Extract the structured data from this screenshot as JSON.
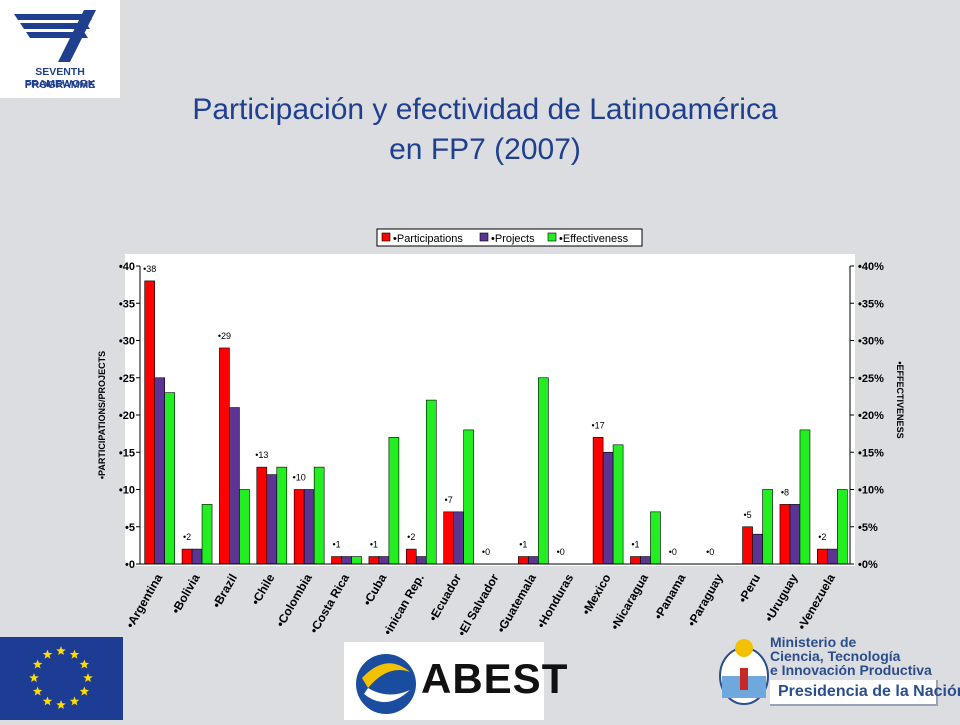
{
  "header": {
    "logo_caption_1": "SEVENTH FRAMEWORK",
    "logo_caption_2": "PROGRAMME",
    "title_line1": "Participación y efectividad de Latinoamérica",
    "title_line2": "en FP7 (2007)"
  },
  "footer": {
    "abest_name": "ABEST",
    "ministry_line1": "Ministerio de",
    "ministry_line2": "Ciencia, Tecnología",
    "ministry_line3": "e Innovación Productiva",
    "presidency": "Presidencia de la Nación"
  },
  "colors": {
    "participations": "#ff0000",
    "projects": "#5c3494",
    "effectiveness": "#22ee22"
  },
  "chart_data": {
    "type": "bar",
    "ylabel": "PARTICIPATIONS/PROJECTS",
    "y2label": "EFFECTIVENESS",
    "ylim": [
      0,
      40
    ],
    "y2lim": [
      0,
      0.4
    ],
    "yticks": [
      0,
      5,
      10,
      15,
      20,
      25,
      30,
      35,
      40
    ],
    "y2ticks": [
      "0%",
      "5%",
      "10%",
      "15%",
      "20%",
      "25%",
      "30%",
      "35%",
      "40%"
    ],
    "legend_position": "top",
    "grid": false,
    "categories": [
      "Argentina",
      "Bolivia",
      "Brazil",
      "Chile",
      "Colombia",
      "Costa Rica",
      "Cuba",
      "Dominican Rep.",
      "Ecuador",
      "El Salvador",
      "Guatemala",
      "Honduras",
      "Mexico",
      "Nicaragua",
      "Panama",
      "Paraguay",
      "Peru",
      "Uruguay",
      "Venezuela"
    ],
    "category_labels": [
      "Argentina",
      "Bolivia",
      "Brazil",
      "Chile",
      "Colombia",
      "Costa Rica",
      "Cuba",
      "inican Rep.",
      "Ecuador",
      "El Salvador",
      "Guatemala",
      "Honduras",
      "Mexico",
      "Nicaragua",
      "Panama",
      "Paraguay",
      "Peru",
      "Uruguay",
      "Venezuela"
    ],
    "series": [
      {
        "name": "Participations",
        "axis": "left",
        "values": [
          38,
          2,
          29,
          13,
          10,
          1,
          1,
          2,
          7,
          0,
          1,
          0,
          17,
          1,
          0,
          0,
          5,
          8,
          2
        ]
      },
      {
        "name": "Projects",
        "axis": "left",
        "values": [
          25,
          2,
          21,
          12,
          10,
          1,
          1,
          1,
          7,
          0,
          1,
          0,
          15,
          1,
          0,
          0,
          4,
          8,
          2
        ]
      },
      {
        "name": "Effectiveness",
        "axis": "right",
        "values": [
          0.23,
          0.08,
          0.1,
          0.13,
          0.13,
          0.01,
          0.17,
          0.22,
          0.18,
          0,
          0.25,
          0,
          0.16,
          0.07,
          0,
          0,
          0.1,
          0.18,
          0.1
        ]
      }
    ],
    "data_labels": [
      38,
      2,
      29,
      13,
      10,
      1,
      1,
      2,
      7,
      0,
      1,
      0,
      17,
      1,
      0,
      0,
      5,
      8,
      2
    ]
  }
}
